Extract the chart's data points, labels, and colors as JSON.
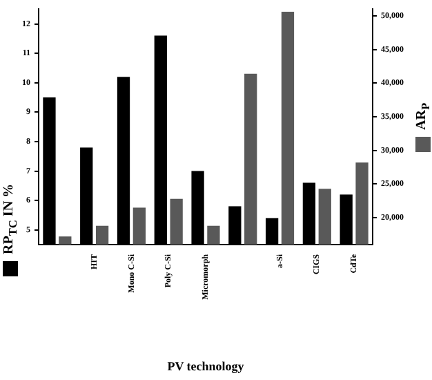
{
  "chart_data": {
    "type": "bar",
    "xlabel": "PV technology",
    "ylabel": "RP$_{TC}$ IN %",
    "y2label": "AR$_{P}$",
    "categories": [
      null,
      "HIT",
      "Mono C-Si",
      "Poly C-Si",
      "Micromorph",
      null,
      "a-Si",
      "CIGS",
      "CdTe"
    ],
    "series": [
      {
        "color": "#000000",
        "values": [
          9.5,
          7.8,
          10.2,
          11.6,
          7.0,
          5.8,
          5.4,
          6.6,
          6.2
        ]
      },
      {
        "color": "#595959",
        "axis": "y2",
        "values": [
          17200,
          18800,
          21500,
          22800,
          18800,
          41400,
          50600,
          24300,
          28200
        ]
      }
    ],
    "ylim": [
      4.5,
      12.5
    ],
    "yticks": [
      5,
      6,
      7,
      8,
      9,
      10,
      11,
      12
    ],
    "y2lim": [
      16000,
      51000
    ],
    "y2ticks": [
      {
        "value": 20000,
        "label": "20,000"
      },
      {
        "value": 25000,
        "label": "25,000"
      },
      {
        "value": 30000,
        "label": "30,000"
      },
      {
        "value": 35000,
        "label": "35,000"
      },
      {
        "value": 40000,
        "label": "40,000"
      },
      {
        "value": 45000,
        "label": "45,000"
      },
      {
        "value": 50000,
        "label": "50,000"
      }
    ],
    "grid": false,
    "legend": false
  }
}
